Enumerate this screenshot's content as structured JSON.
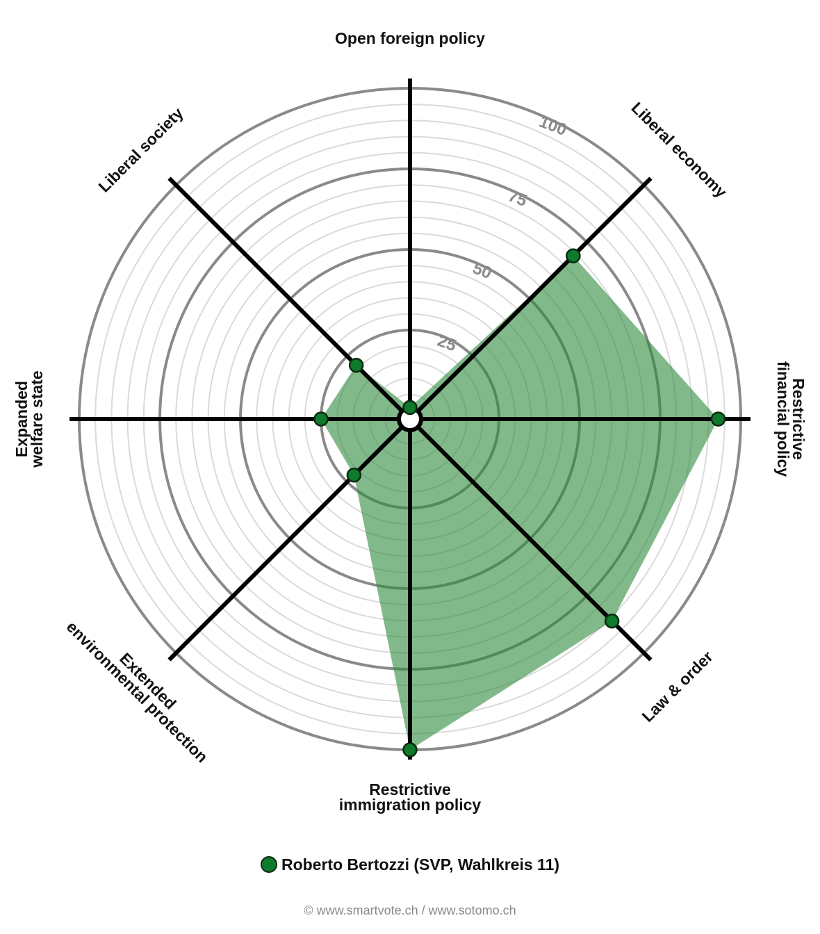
{
  "chart_data": {
    "type": "radar",
    "axes": [
      "Open foreign policy",
      "Liberal economy",
      "Restrictive financial policy",
      "Law & order",
      "Restrictive immigration policy",
      "Extended environmental protection",
      "Expanded welfare state",
      "Liberal society"
    ],
    "axis_label_lines": [
      [
        "Open foreign policy"
      ],
      [
        "Liberal economy"
      ],
      [
        "Restrictive",
        "financial policy"
      ],
      [
        "Law & order"
      ],
      [
        "Restrictive",
        "immigration policy"
      ],
      [
        "Extended",
        "environmental protection"
      ],
      [
        "Expanded",
        "welfare state"
      ],
      [
        "Liberal society"
      ]
    ],
    "r_ticks": [
      25,
      50,
      75,
      100
    ],
    "r_range": [
      0,
      100
    ],
    "series": [
      {
        "name": "Roberto Bertozzi (SVP, Wahlkreis 11)",
        "values": [
          1,
          69,
          93,
          86,
          100,
          22,
          25,
          21
        ],
        "color": "#0f7a2c",
        "fill": "#2e8b3e"
      }
    ]
  },
  "legend": {
    "label": "Roberto Bertozzi (SVP, Wahlkreis 11)",
    "color": "#0f7a2c"
  },
  "footer": "© www.smartvote.ch / www.sotomo.ch"
}
